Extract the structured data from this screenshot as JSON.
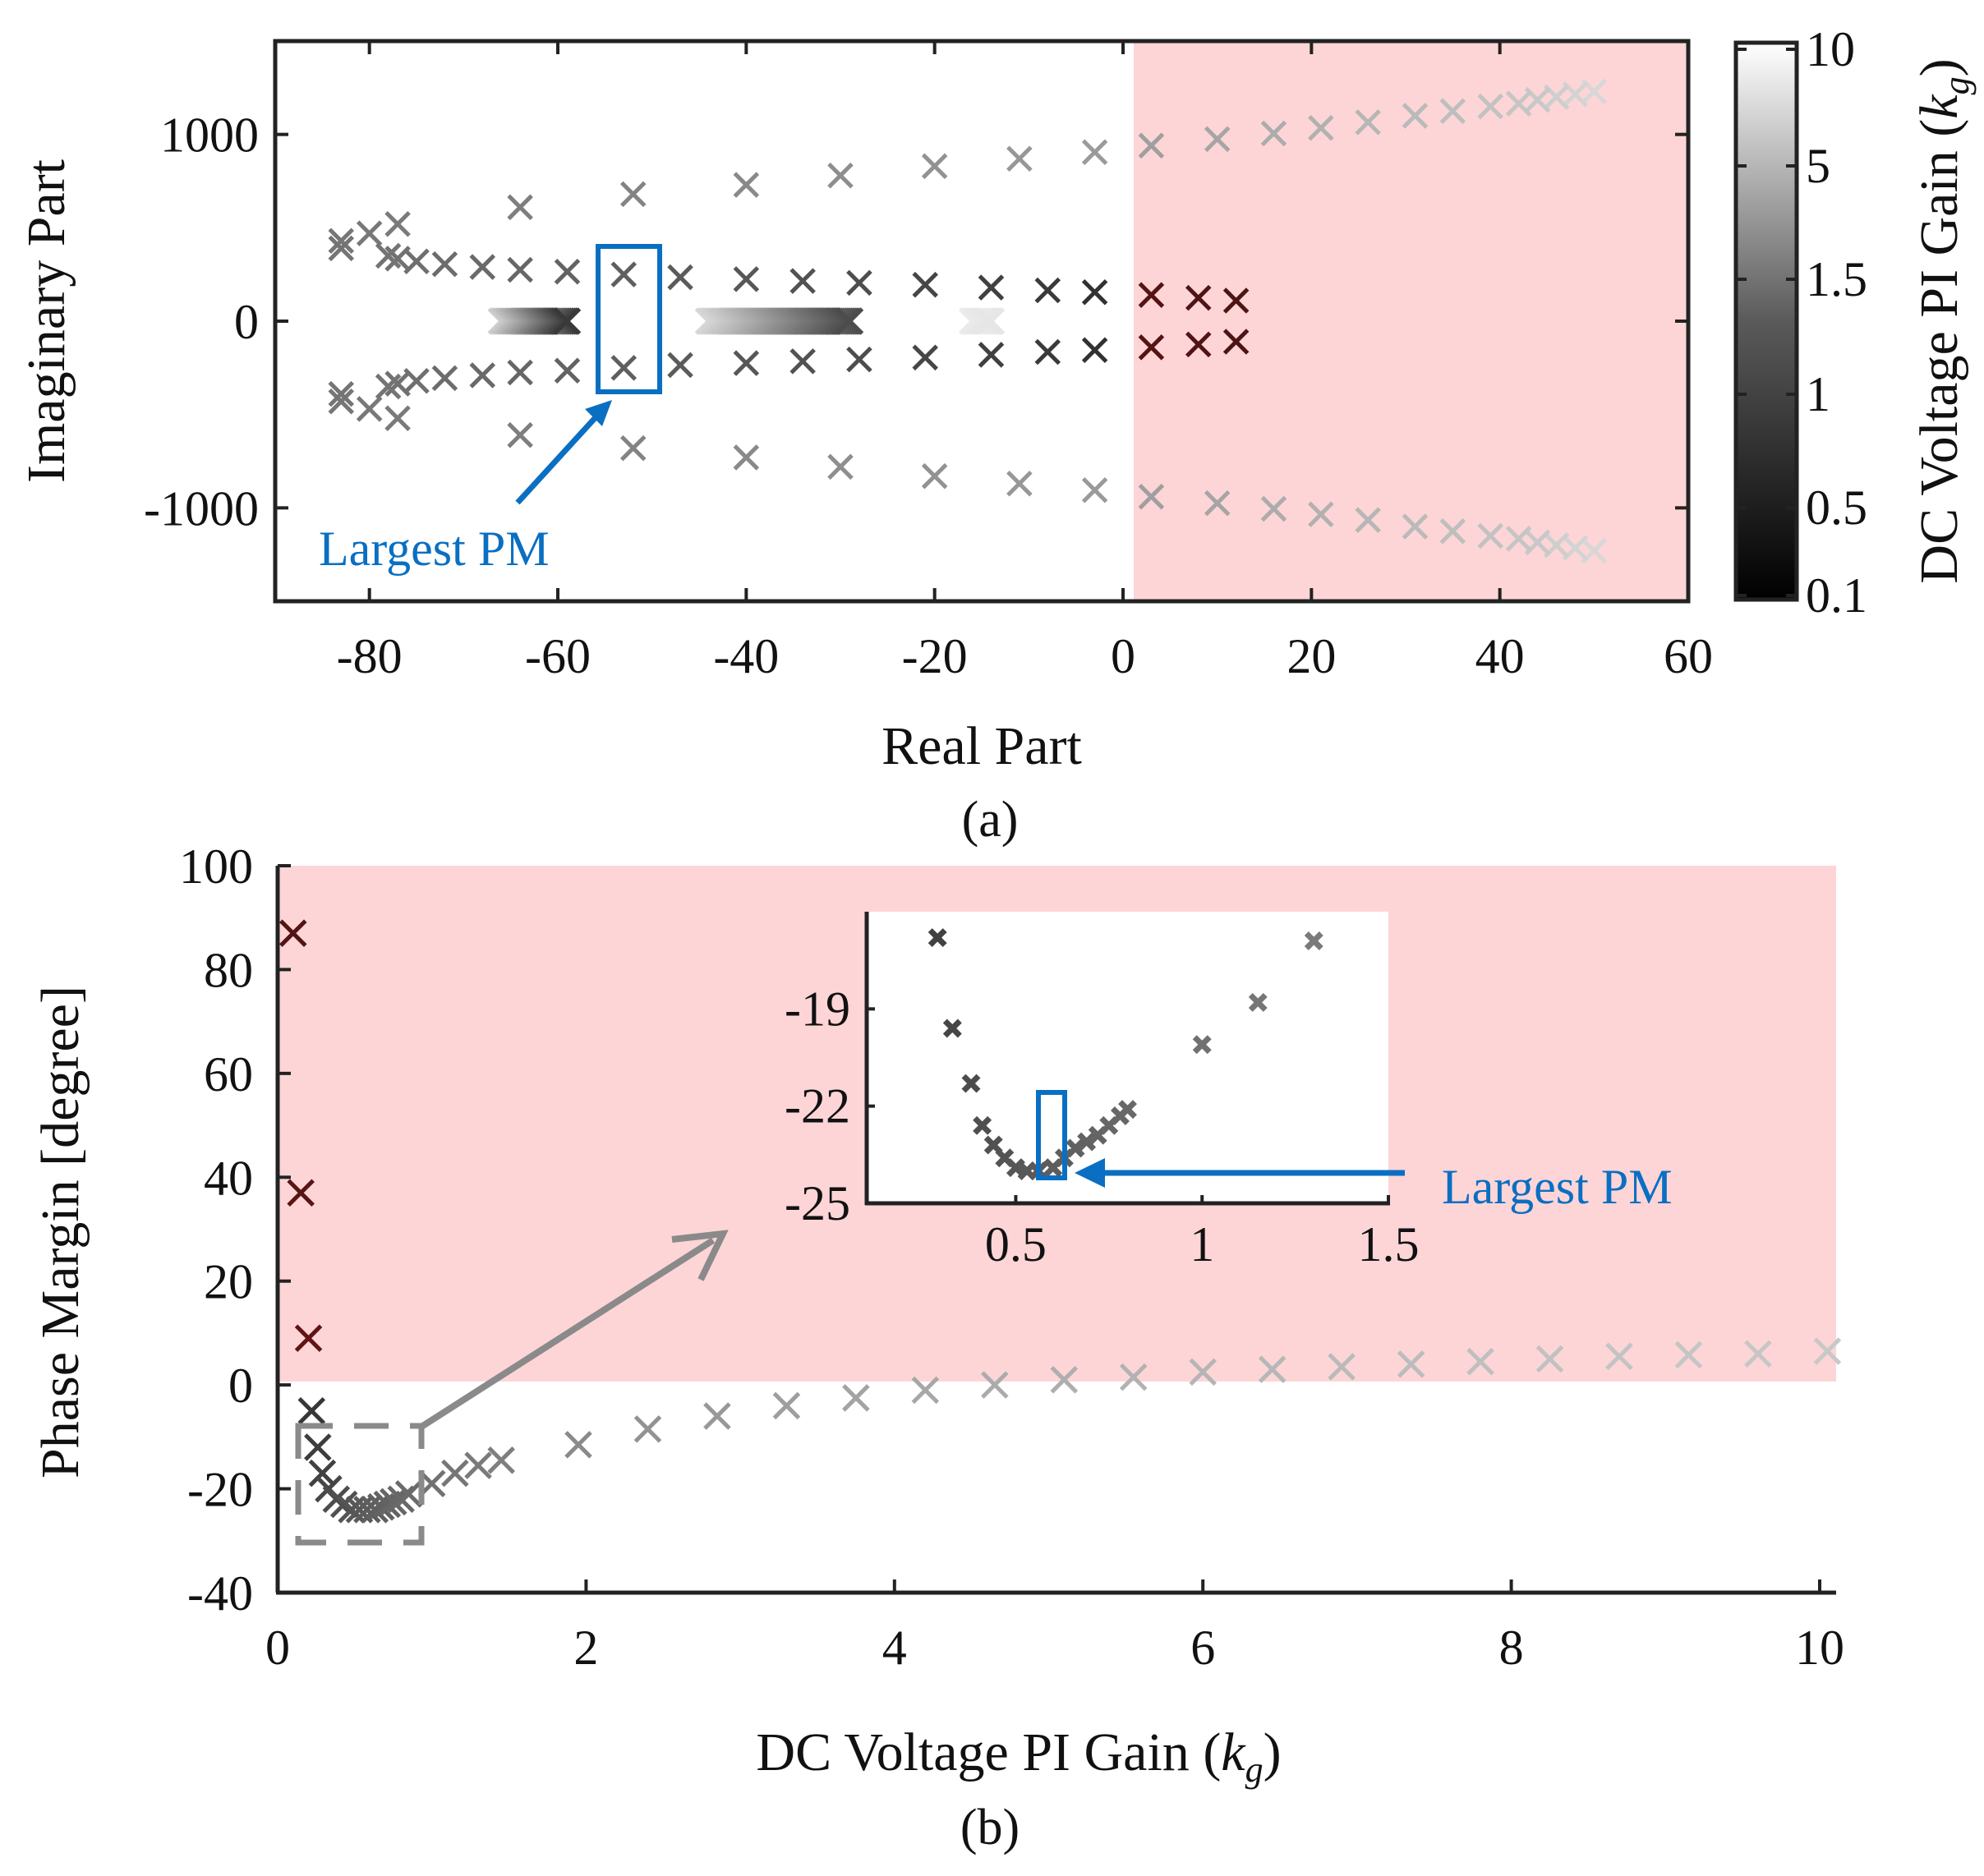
{
  "chart_data": [
    {
      "panel": "(a)",
      "type": "scatter",
      "marker": "x",
      "xlabel": "Real Part",
      "ylabel": "Imaginary Part",
      "xlim": [
        -90,
        60
      ],
      "ylim": [
        -1500,
        1500
      ],
      "xticks": [
        -80,
        -60,
        -40,
        -20,
        0,
        20,
        40,
        60
      ],
      "xtick_labels": [
        "-80",
        "-60",
        "-40",
        "-20",
        "0",
        "20",
        "40",
        "60"
      ],
      "yticks": [
        1000,
        0,
        -1000
      ],
      "ytick_labels": [
        "1000",
        "0",
        "-1000"
      ],
      "unstable_region": {
        "x_from": 0,
        "x_to": 60,
        "color": "#fdd5d7"
      },
      "colorbar": {
        "label": "DC Voltage PI Gain",
        "symbol": "k",
        "subscript": "g",
        "ticks": [
          10,
          5,
          1.5,
          1,
          0.5,
          0.1
        ],
        "tick_labels": [
          "10",
          "5",
          "1.5",
          "1",
          "0.5",
          "0.1"
        ]
      },
      "annotation": {
        "text": "Largest PM",
        "box_x": [
          -56,
          -50
        ],
        "box_y": [
          -380,
          400
        ]
      },
      "poles_outer": [
        {
          "re": 50,
          "im": 1230,
          "kg": 10
        },
        {
          "re": 48,
          "im": 1215,
          "kg": 9
        },
        {
          "re": 46,
          "im": 1200,
          "kg": 8
        },
        {
          "re": 44,
          "im": 1185,
          "kg": 7
        },
        {
          "re": 42,
          "im": 1165,
          "kg": 6.5
        },
        {
          "re": 39,
          "im": 1150,
          "kg": 6
        },
        {
          "re": 35,
          "im": 1125,
          "kg": 5.5
        },
        {
          "re": 31,
          "im": 1100,
          "kg": 5
        },
        {
          "re": 26,
          "im": 1065,
          "kg": 4.5
        },
        {
          "re": 21,
          "im": 1035,
          "kg": 4
        },
        {
          "re": 16,
          "im": 1005,
          "kg": 3.5
        },
        {
          "re": 10,
          "im": 975,
          "kg": 3
        },
        {
          "re": 3,
          "im": 940,
          "kg": 2.6
        },
        {
          "re": -3,
          "im": 905,
          "kg": 2.3
        },
        {
          "re": -11,
          "im": 870,
          "kg": 2.1
        },
        {
          "re": -20,
          "im": 830,
          "kg": 1.9
        },
        {
          "re": -30,
          "im": 780,
          "kg": 1.7
        },
        {
          "re": -40,
          "im": 730,
          "kg": 1.5
        },
        {
          "re": -52,
          "im": 680,
          "kg": 1.3
        },
        {
          "re": -64,
          "im": 610,
          "kg": 1.15
        },
        {
          "re": -77,
          "im": 520,
          "kg": 1.05
        },
        {
          "re": -80,
          "im": 470,
          "kg": 1.0
        },
        {
          "re": -83,
          "im": 430,
          "kg": 0.95
        },
        {
          "re": -83,
          "im": 390,
          "kg": 0.9
        }
      ],
      "poles_inner": [
        {
          "re": 12,
          "im": 110,
          "kg": 0.1
        },
        {
          "re": 8,
          "im": 125,
          "kg": 0.12
        },
        {
          "re": 3,
          "im": 140,
          "kg": 0.15
        },
        {
          "re": -3,
          "im": 155,
          "kg": 0.18
        },
        {
          "re": -8,
          "im": 165,
          "kg": 0.22
        },
        {
          "re": -14,
          "im": 180,
          "kg": 0.26
        },
        {
          "re": -21,
          "im": 195,
          "kg": 0.3
        },
        {
          "re": -28,
          "im": 205,
          "kg": 0.35
        },
        {
          "re": -34,
          "im": 215,
          "kg": 0.4
        },
        {
          "re": -40,
          "im": 225,
          "kg": 0.45
        },
        {
          "re": -47,
          "im": 235,
          "kg": 0.5
        },
        {
          "re": -53,
          "im": 250,
          "kg": 0.55
        },
        {
          "re": -59,
          "im": 265,
          "kg": 0.6
        },
        {
          "re": -64,
          "im": 275,
          "kg": 0.65
        },
        {
          "re": -68,
          "im": 290,
          "kg": 0.7
        },
        {
          "re": -72,
          "im": 305,
          "kg": 0.75
        },
        {
          "re": -75,
          "im": 320,
          "kg": 0.8
        },
        {
          "re": -77,
          "im": 335,
          "kg": 0.85
        },
        {
          "re": -78,
          "im": 350,
          "kg": 0.9
        }
      ],
      "real_axis_clusters": [
        {
          "re_from": -66,
          "re_to": -59,
          "kg_from": 5,
          "kg_to": 0.2
        },
        {
          "re_from": -44,
          "re_to": -29,
          "kg_from": 6,
          "kg_to": 0.3
        },
        {
          "re_from": -16,
          "re_to": -14,
          "kg_from": 9,
          "kg_to": 8
        }
      ]
    },
    {
      "panel": "(b)",
      "type": "scatter",
      "marker": "x",
      "xlabel": "DC Voltage PI Gain",
      "xlabel_symbol": "k",
      "xlabel_subscript": "g",
      "ylabel": "Phase Margin [degree]",
      "xlim": [
        0,
        10
      ],
      "ylim": [
        -40,
        100
      ],
      "xticks": [
        0,
        2,
        4,
        6,
        8,
        10
      ],
      "xtick_labels": [
        "0",
        "2",
        "4",
        "6",
        "8",
        "10"
      ],
      "yticks": [
        100,
        80,
        60,
        40,
        20,
        0,
        -20,
        -40
      ],
      "ytick_labels": [
        "100",
        "80",
        "60",
        "40",
        "20",
        "0",
        "-20",
        "-40"
      ],
      "unstable_region": {
        "y_from": 0,
        "y_to": 98,
        "color": "#fdd5d7"
      },
      "x": [
        0.1,
        0.15,
        0.2,
        0.22,
        0.26,
        0.29,
        0.33,
        0.38,
        0.43,
        0.48,
        0.53,
        0.58,
        0.63,
        0.67,
        0.71,
        0.75,
        0.8,
        0.85,
        1.0,
        1.15,
        1.3,
        1.45,
        1.95,
        2.4,
        2.85,
        3.3,
        3.75,
        4.2,
        4.65,
        5.1,
        5.55,
        6.0,
        6.45,
        6.9,
        7.35,
        7.8,
        8.25,
        8.7,
        9.15,
        9.6,
        10.05
      ],
      "y": [
        87,
        37,
        9,
        -5,
        -12,
        -17,
        -20,
        -22,
        -23,
        -24,
        -24,
        -24,
        -24,
        -23.5,
        -23,
        -22.5,
        -22,
        -21,
        -19,
        -17,
        -15.5,
        -14.5,
        -11.5,
        -8.5,
        -6,
        -4,
        -2.5,
        -1,
        0,
        1,
        1.5,
        2.5,
        3,
        3.5,
        4,
        4.5,
        5,
        5.5,
        5.8,
        6,
        6.5
      ],
      "kg": [
        0.1,
        0.15,
        0.2,
        0.22,
        0.26,
        0.29,
        0.33,
        0.38,
        0.43,
        0.48,
        0.53,
        0.58,
        0.63,
        0.67,
        0.71,
        0.75,
        0.8,
        0.85,
        1.0,
        1.15,
        1.3,
        1.45,
        1.95,
        2.4,
        2.85,
        3.3,
        3.75,
        4.2,
        4.65,
        5.1,
        5.55,
        6.0,
        6.45,
        6.9,
        7.35,
        7.8,
        8.25,
        8.7,
        9.15,
        9.6,
        10.05
      ],
      "zoom_box": {
        "x": [
          0.15,
          0.9
        ],
        "y": [
          -30,
          -7
        ]
      },
      "inset": {
        "xlim": [
          0.1,
          1.5
        ],
        "ylim": [
          -25,
          -16
        ],
        "xticks": [
          0.5,
          1,
          1.5
        ],
        "xtick_labels": [
          "0.5",
          "1",
          "1.5"
        ],
        "yticks": [
          -19,
          -22,
          -25
        ],
        "ytick_labels": [
          "-19",
          "-22",
          "-25"
        ],
        "x": [
          0.29,
          0.33,
          0.38,
          0.41,
          0.44,
          0.47,
          0.5,
          0.53,
          0.56,
          0.6,
          0.63,
          0.66,
          0.69,
          0.72,
          0.75,
          0.78,
          0.8,
          1.0,
          1.15,
          1.3
        ],
        "y": [
          -16.8,
          -19.6,
          -21.3,
          -22.6,
          -23.2,
          -23.6,
          -23.9,
          -24,
          -24,
          -23.9,
          -23.6,
          -23.3,
          -23.1,
          -22.9,
          -22.6,
          -22.3,
          -22.1,
          -20.1,
          -18.8,
          -16.9
        ],
        "kg": [
          0.29,
          0.33,
          0.38,
          0.41,
          0.44,
          0.47,
          0.5,
          0.53,
          0.56,
          0.6,
          0.63,
          0.66,
          0.69,
          0.72,
          0.75,
          0.78,
          0.8,
          1.0,
          1.15,
          1.3
        ],
        "highlight_box": {
          "x": [
            0.53,
            0.59
          ],
          "y": [
            -24.3,
            -21.6
          ]
        },
        "annotation": "Largest PM"
      }
    }
  ]
}
